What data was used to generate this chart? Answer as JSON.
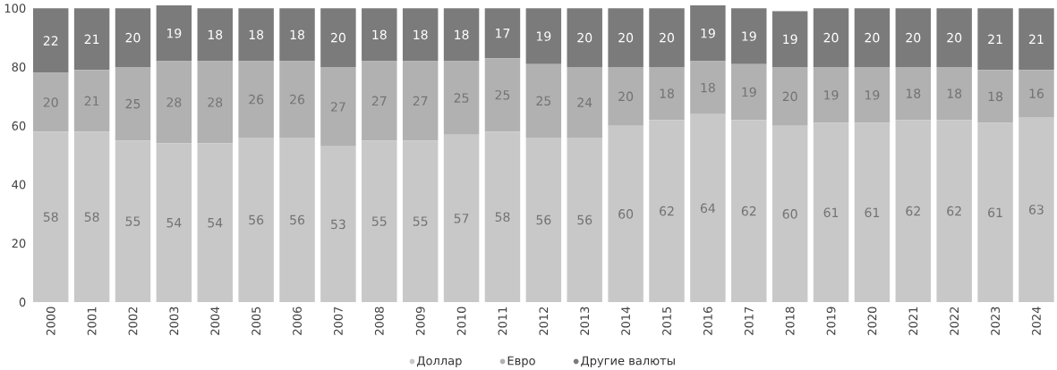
{
  "chart_data": {
    "type": "bar",
    "stacked": true,
    "data_labels": true,
    "legend": "bottom",
    "grid": false,
    "categories": [
      "2000",
      "2001",
      "2002",
      "2003",
      "2004",
      "2005",
      "2006",
      "2007",
      "2008",
      "2009",
      "2010",
      "2011",
      "2012",
      "2013",
      "2014",
      "2015",
      "2016",
      "2017",
      "2018",
      "2019",
      "2020",
      "2021",
      "2022",
      "2023",
      "2024"
    ],
    "series": [
      {
        "name": "Доллар",
        "color": "#c8c8c8",
        "values": [
          58,
          58,
          55,
          54,
          54,
          56,
          56,
          53,
          55,
          55,
          57,
          58,
          56,
          56,
          60,
          62,
          64,
          62,
          60,
          61,
          61,
          62,
          62,
          61,
          63
        ]
      },
      {
        "name": "Евро",
        "color": "#b1b1b1",
        "values": [
          20,
          21,
          25,
          28,
          28,
          26,
          26,
          27,
          27,
          27,
          25,
          25,
          25,
          24,
          20,
          18,
          18,
          19,
          20,
          19,
          19,
          18,
          18,
          18,
          16
        ]
      },
      {
        "name": "Другие валюты",
        "color": "#7b7b7b",
        "values": [
          22,
          21,
          20,
          19,
          18,
          18,
          18,
          20,
          18,
          18,
          18,
          17,
          19,
          20,
          20,
          20,
          19,
          19,
          19,
          20,
          20,
          20,
          20,
          21,
          21
        ]
      }
    ],
    "ylim": [
      0,
      101
    ],
    "yticks": [
      0,
      20,
      40,
      60,
      80,
      100
    ]
  }
}
